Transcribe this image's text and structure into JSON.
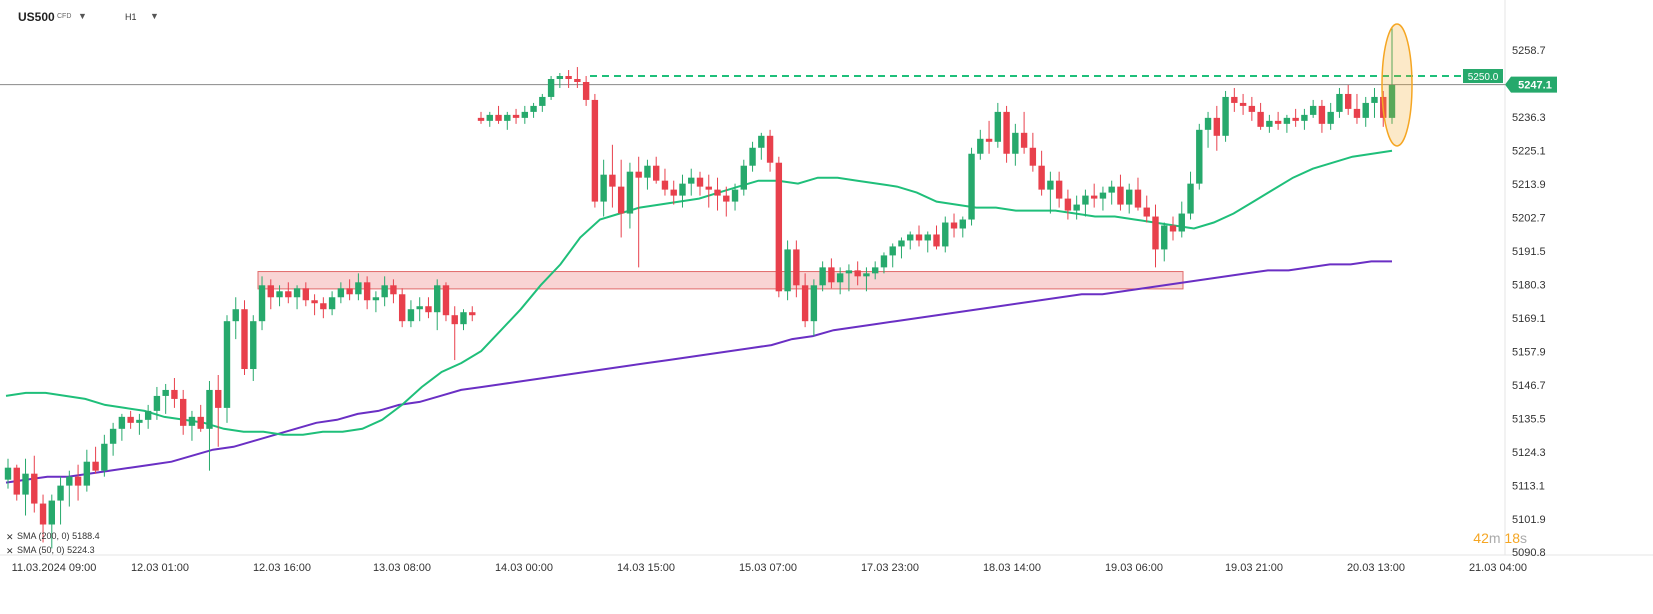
{
  "header": {
    "symbol": "US500",
    "symbol_badge": "CFD",
    "timeframe": "H1"
  },
  "timer": {
    "minutes": "42",
    "m_unit": "m",
    "seconds": "18",
    "s_unit": "s"
  },
  "indicators": [
    {
      "name": "SMA",
      "params": "(200, 0)",
      "value": "5188.4",
      "color": "#6a2fc4"
    },
    {
      "name": "SMA",
      "params": "(50, 0)",
      "value": "5224.3",
      "color": "#1fbf7a"
    }
  ],
  "colors": {
    "up": "#26a96c",
    "down": "#e8404c",
    "sma50": "#1fbf7a",
    "sma200": "#6a2fc4",
    "resistance": "#1fbf7a",
    "zone_fill": "#f9d4d4",
    "zone_stroke": "#e06a6a",
    "highlight": "#f5a623",
    "price_label": "#26a96c"
  },
  "chart_data": {
    "type": "candlestick",
    "y_ticks": [
      "5258.7",
      "5247.1",
      "5236.3",
      "5225.1",
      "5213.9",
      "5202.7",
      "5191.5",
      "5180.3",
      "5169.1",
      "5157.9",
      "5146.7",
      "5135.5",
      "5124.3",
      "5113.1",
      "5101.9",
      "5090.8"
    ],
    "ylim": [
      5090.8,
      5258.7
    ],
    "x_labels": [
      "11.03.2024 09:00",
      "12.03 01:00",
      "12.03 16:00",
      "13.03 08:00",
      "14.03 00:00",
      "14.03 15:00",
      "15.03 07:00",
      "17.03 23:00",
      "18.03 14:00",
      "19.03 06:00",
      "19.03 21:00",
      "20.03 13:00",
      "21.03 04:00"
    ],
    "current_price": "5247.1",
    "resistance_level": "5250.0",
    "resistance_value": 5250.0,
    "support_zone": [
      5178.8,
      5184.6
    ],
    "candles": [
      [
        5115,
        5122,
        5112,
        5119
      ],
      [
        5119,
        5120,
        5108,
        5110
      ],
      [
        5110,
        5122,
        5103,
        5117
      ],
      [
        5117,
        5123,
        5104,
        5107
      ],
      [
        5107,
        5110,
        5094,
        5100
      ],
      [
        5100,
        5110,
        5092,
        5108
      ],
      [
        5108,
        5116,
        5100,
        5113
      ],
      [
        5113,
        5118,
        5106,
        5116
      ],
      [
        5116,
        5120,
        5108,
        5113
      ],
      [
        5113,
        5125,
        5111,
        5121
      ],
      [
        5121,
        5126,
        5117,
        5118
      ],
      [
        5118,
        5130,
        5116,
        5127
      ],
      [
        5127,
        5134,
        5123,
        5132
      ],
      [
        5132,
        5137,
        5128,
        5136
      ],
      [
        5136,
        5138,
        5132,
        5134
      ],
      [
        5134,
        5137,
        5130,
        5135
      ],
      [
        5135,
        5140,
        5132,
        5138
      ],
      [
        5138,
        5146,
        5135,
        5143
      ],
      [
        5143,
        5147,
        5137,
        5145
      ],
      [
        5145,
        5149,
        5139,
        5142
      ],
      [
        5142,
        5145,
        5130,
        5133
      ],
      [
        5133,
        5138,
        5128,
        5136
      ],
      [
        5136,
        5140,
        5131,
        5132
      ],
      [
        5132,
        5148,
        5118,
        5145
      ],
      [
        5145,
        5150,
        5126,
        5139
      ],
      [
        5139,
        5170,
        5134,
        5168
      ],
      [
        5168,
        5176,
        5162,
        5172
      ],
      [
        5172,
        5175,
        5150,
        5152
      ],
      [
        5152,
        5170,
        5148,
        5168
      ],
      [
        5168,
        5183,
        5165,
        5180
      ],
      [
        5180,
        5182,
        5172,
        5176
      ],
      [
        5176,
        5180,
        5173,
        5178
      ],
      [
        5178,
        5181,
        5174,
        5176
      ],
      [
        5176,
        5180,
        5172,
        5179
      ],
      [
        5179,
        5181,
        5173,
        5175
      ],
      [
        5175,
        5177,
        5170,
        5174
      ],
      [
        5174,
        5176,
        5169,
        5172
      ],
      [
        5172,
        5178,
        5170,
        5176
      ],
      [
        5176,
        5181,
        5174,
        5179
      ],
      [
        5179,
        5182,
        5175,
        5177
      ],
      [
        5177,
        5184,
        5175,
        5181
      ],
      [
        5181,
        5183,
        5172,
        5175
      ],
      [
        5175,
        5178,
        5171,
        5176
      ],
      [
        5176,
        5183,
        5173,
        5180
      ],
      [
        5180,
        5182,
        5174,
        5177
      ],
      [
        5177,
        5179,
        5166,
        5168
      ],
      [
        5168,
        5175,
        5166,
        5172
      ],
      [
        5172,
        5176,
        5168,
        5173
      ],
      [
        5173,
        5176,
        5169,
        5171
      ],
      [
        5171,
        5182,
        5165,
        5180
      ],
      [
        5180,
        5181,
        5168,
        5170
      ],
      [
        5170,
        5173,
        5155,
        5167
      ],
      [
        5167,
        5172,
        5165,
        5171
      ],
      [
        5171,
        5173,
        5168,
        5170
      ],
      [
        5236,
        5238,
        5234,
        5235
      ],
      [
        5235,
        5238,
        5233,
        5237
      ],
      [
        5237,
        5240,
        5234,
        5235
      ],
      [
        5235,
        5238,
        5232,
        5237
      ],
      [
        5237,
        5239,
        5234,
        5236
      ],
      [
        5236,
        5240,
        5234,
        5238
      ],
      [
        5238,
        5241,
        5236,
        5240
      ],
      [
        5240,
        5244,
        5238,
        5243
      ],
      [
        5243,
        5250,
        5242,
        5249
      ],
      [
        5249,
        5251,
        5246,
        5250
      ],
      [
        5250,
        5252,
        5246,
        5249
      ],
      [
        5249,
        5253,
        5246,
        5248
      ],
      [
        5248,
        5250,
        5240,
        5242
      ],
      [
        5242,
        5244,
        5206,
        5208
      ],
      [
        5208,
        5222,
        5203,
        5217
      ],
      [
        5217,
        5227,
        5206,
        5213
      ],
      [
        5213,
        5222,
        5196,
        5204
      ],
      [
        5204,
        5221,
        5199,
        5218
      ],
      [
        5218,
        5223,
        5186,
        5216
      ],
      [
        5216,
        5222,
        5212,
        5220
      ],
      [
        5220,
        5223,
        5214,
        5215
      ],
      [
        5215,
        5219,
        5210,
        5212
      ],
      [
        5212,
        5215,
        5207,
        5210
      ],
      [
        5210,
        5217,
        5206,
        5214
      ],
      [
        5214,
        5219,
        5210,
        5216
      ],
      [
        5216,
        5218,
        5210,
        5213
      ],
      [
        5213,
        5217,
        5206,
        5212
      ],
      [
        5212,
        5216,
        5205,
        5210
      ],
      [
        5210,
        5213,
        5203,
        5208
      ],
      [
        5208,
        5214,
        5205,
        5212
      ],
      [
        5212,
        5222,
        5210,
        5220
      ],
      [
        5220,
        5228,
        5218,
        5226
      ],
      [
        5226,
        5231,
        5222,
        5230
      ],
      [
        5230,
        5232,
        5218,
        5221
      ],
      [
        5221,
        5223,
        5176,
        5178
      ],
      [
        5178,
        5195,
        5175,
        5192
      ],
      [
        5192,
        5195,
        5176,
        5180
      ],
      [
        5180,
        5184,
        5166,
        5168
      ],
      [
        5168,
        5182,
        5163,
        5180
      ],
      [
        5180,
        5188,
        5178,
        5186
      ],
      [
        5186,
        5189,
        5179,
        5181
      ],
      [
        5181,
        5186,
        5177,
        5184
      ],
      [
        5184,
        5187,
        5178,
        5185
      ],
      [
        5185,
        5188,
        5180,
        5183
      ],
      [
        5183,
        5186,
        5178,
        5184
      ],
      [
        5184,
        5188,
        5182,
        5186
      ],
      [
        5186,
        5191,
        5184,
        5190
      ],
      [
        5190,
        5194,
        5186,
        5193
      ],
      [
        5193,
        5196,
        5189,
        5195
      ],
      [
        5195,
        5198,
        5192,
        5197
      ],
      [
        5197,
        5200,
        5193,
        5195
      ],
      [
        5195,
        5198,
        5191,
        5197
      ],
      [
        5197,
        5200,
        5192,
        5193
      ],
      [
        5193,
        5203,
        5191,
        5201
      ],
      [
        5201,
        5204,
        5196,
        5199
      ],
      [
        5199,
        5203,
        5196,
        5202
      ],
      [
        5202,
        5226,
        5200,
        5224
      ],
      [
        5224,
        5232,
        5222,
        5229
      ],
      [
        5229,
        5235,
        5224,
        5228
      ],
      [
        5228,
        5241,
        5226,
        5238
      ],
      [
        5238,
        5240,
        5221,
        5224
      ],
      [
        5224,
        5234,
        5220,
        5231
      ],
      [
        5231,
        5238,
        5224,
        5226
      ],
      [
        5226,
        5231,
        5218,
        5220
      ],
      [
        5220,
        5225,
        5210,
        5212
      ],
      [
        5212,
        5218,
        5204,
        5215
      ],
      [
        5215,
        5218,
        5206,
        5209
      ],
      [
        5209,
        5212,
        5202,
        5205
      ],
      [
        5205,
        5210,
        5202,
        5207
      ],
      [
        5207,
        5212,
        5203,
        5210
      ],
      [
        5210,
        5214,
        5206,
        5209
      ],
      [
        5209,
        5213,
        5205,
        5211
      ],
      [
        5211,
        5215,
        5207,
        5213
      ],
      [
        5213,
        5217,
        5205,
        5207
      ],
      [
        5207,
        5214,
        5204,
        5212
      ],
      [
        5212,
        5216,
        5205,
        5206
      ],
      [
        5206,
        5210,
        5201,
        5203
      ],
      [
        5203,
        5207,
        5186,
        5192
      ],
      [
        5192,
        5201,
        5188,
        5200
      ],
      [
        5200,
        5203,
        5195,
        5198
      ],
      [
        5198,
        5208,
        5196,
        5204
      ],
      [
        5204,
        5218,
        5202,
        5214
      ],
      [
        5214,
        5234,
        5212,
        5232
      ],
      [
        5232,
        5238,
        5226,
        5236
      ],
      [
        5236,
        5240,
        5225,
        5230
      ],
      [
        5230,
        5245,
        5228,
        5243
      ],
      [
        5243,
        5246,
        5238,
        5241
      ],
      [
        5241,
        5244,
        5237,
        5240
      ],
      [
        5240,
        5243,
        5235,
        5238
      ],
      [
        5238,
        5241,
        5232,
        5233
      ],
      [
        5233,
        5237,
        5231,
        5235
      ],
      [
        5235,
        5238,
        5232,
        5234
      ],
      [
        5234,
        5237,
        5231,
        5236
      ],
      [
        5236,
        5239,
        5233,
        5235
      ],
      [
        5235,
        5239,
        5232,
        5237
      ],
      [
        5237,
        5242,
        5236,
        5240
      ],
      [
        5240,
        5242,
        5231,
        5234
      ],
      [
        5234,
        5241,
        5232,
        5238
      ],
      [
        5238,
        5246,
        5236,
        5244
      ],
      [
        5244,
        5247,
        5237,
        5239
      ],
      [
        5239,
        5244,
        5234,
        5236
      ],
      [
        5236,
        5243,
        5233,
        5241
      ],
      [
        5241,
        5246,
        5236,
        5243
      ],
      [
        5243,
        5245,
        5233,
        5236
      ],
      [
        5236,
        5266,
        5234,
        5247
      ]
    ],
    "sma50": [
      5143,
      5144,
      5144,
      5143,
      5142,
      5140,
      5139,
      5138,
      5136,
      5135,
      5134,
      5132,
      5131,
      5131,
      5130,
      5130,
      5131,
      5131,
      5132,
      5135,
      5140,
      5146,
      5151,
      5154,
      5158,
      5165,
      5172,
      5180,
      5187,
      5196,
      5202,
      5204,
      5206,
      5207,
      5208,
      5209,
      5211,
      5213,
      5215,
      5215,
      5214,
      5216,
      5216,
      5215,
      5214,
      5213,
      5211,
      5208,
      5207,
      5206,
      5206,
      5205,
      5205,
      5205,
      5204,
      5203,
      5203,
      5202,
      5201,
      5200,
      5199,
      5201,
      5204,
      5208,
      5212,
      5216,
      5219,
      5221,
      5223,
      5224,
      5225
    ],
    "sma200": [
      5114,
      5115,
      5116,
      5116,
      5117,
      5118,
      5119,
      5120,
      5121,
      5123,
      5125,
      5126,
      5128,
      5130,
      5132,
      5134,
      5135,
      5137,
      5138,
      5140,
      5141,
      5143,
      5145,
      5146,
      5147,
      5148,
      5149,
      5150,
      5151,
      5152,
      5153,
      5154,
      5155,
      5156,
      5157,
      5158,
      5159,
      5160,
      5162,
      5163,
      5165,
      5166,
      5167,
      5168,
      5169,
      5170,
      5171,
      5172,
      5173,
      5174,
      5175,
      5176,
      5177,
      5177,
      5178,
      5179,
      5180,
      5181,
      5182,
      5183,
      5184,
      5185,
      5185,
      5186,
      5187,
      5187,
      5188,
      5188
    ],
    "highlight_note": "last candle wick circled"
  }
}
